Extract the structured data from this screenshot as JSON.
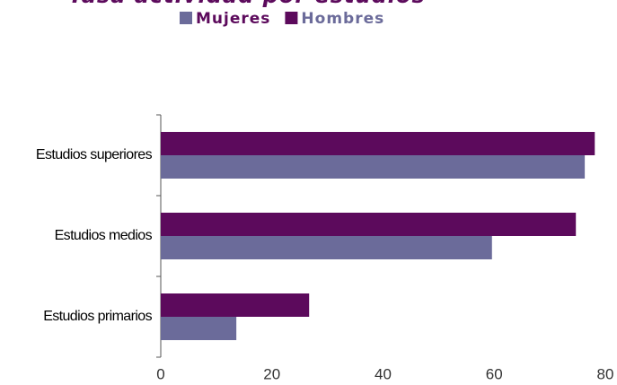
{
  "chart_data": {
    "type": "barh",
    "title": "Tasa actividad por estudios",
    "categories": [
      "Estudios primarios",
      "Estudios medios",
      "Estudios superiores"
    ],
    "series": [
      {
        "name": "Mujeres",
        "color": "#6b6b9a",
        "values": [
          13.6,
          59.6,
          76.3
        ]
      },
      {
        "name": "Hombres",
        "color": "#5c0a5c",
        "values": [
          26.7,
          74.7,
          78.1
        ]
      }
    ],
    "xlim": [
      0,
      80
    ],
    "xticks": [
      0,
      20,
      40,
      60,
      80
    ],
    "grid": false,
    "legend": "top"
  }
}
